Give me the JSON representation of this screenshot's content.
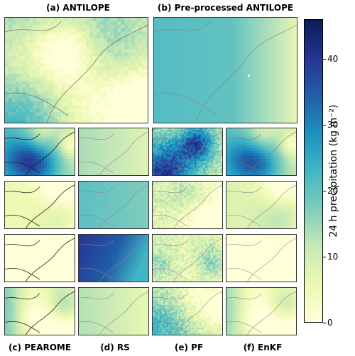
{
  "panel_titles": {
    "a": "(a) ANTILOPE",
    "b": "(b) Pre-processed ANTILOPE",
    "c": "(c) PEAROME",
    "d": "(d) RS",
    "e": "(e) PF",
    "f": "(f) EnKF"
  },
  "colorbar": {
    "label": "24 h precipitation (kg m⁻²)",
    "ticks": [
      "0",
      "10",
      "20",
      "30",
      "40"
    ],
    "colormap": "YlGnBu",
    "colors": [
      "#ffffd9",
      "#edf8b1",
      "#c7e9b4",
      "#7fcdbb",
      "#41b6c4",
      "#1d91c0",
      "#225ea8",
      "#253494",
      "#081d58"
    ]
  },
  "chart_data": {
    "type": "heatmap",
    "value_range": [
      0,
      46
    ],
    "colorbar_label": "24 h precipitation (kg m⁻²)",
    "colorbar_ticks": [
      0,
      10,
      20,
      30,
      40
    ],
    "panels": [
      "ANTILOPE",
      "Pre-processed ANTILOPE",
      "PEAROME",
      "RS",
      "PF",
      "EnKF"
    ],
    "ensemble_rows": 4
  }
}
